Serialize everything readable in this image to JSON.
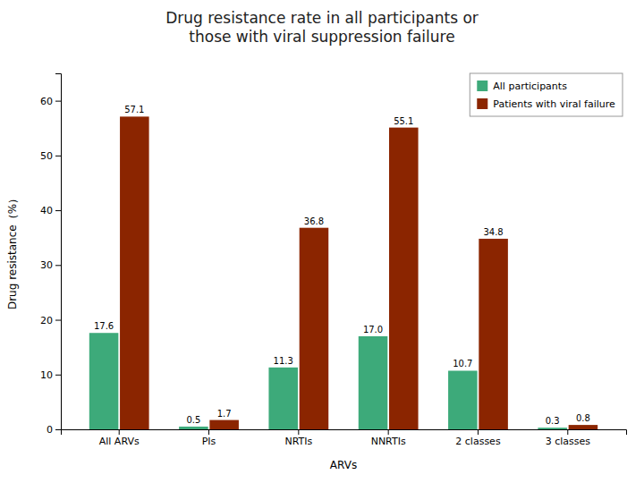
{
  "chart_data": {
    "type": "bar",
    "title": "Drug resistance rate in all participants or\nthose with viral suppression failure",
    "x_label": "ARVs",
    "y_label": "Drug resistance（%）",
    "categories": [
      "All ARVs",
      "PIs",
      "NRTIs",
      "NNRTIs",
      "2 classes",
      "3 classes"
    ],
    "series": [
      {
        "name": "All participants",
        "color": "#3DAA7A",
        "values": [
          17.6,
          0.5,
          11.3,
          17.0,
          10.7,
          0.3
        ],
        "value_labels": [
          "17.6",
          "0.5",
          "11.3",
          "17.0",
          "10.7",
          "0.3"
        ]
      },
      {
        "name": "Patients with viral failure",
        "color": "#8B2500",
        "values": [
          57.1,
          1.7,
          36.8,
          55.1,
          34.8,
          0.8
        ]
      }
    ],
    "ylim": [
      0,
      65
    ],
    "yticks": [
      0,
      10,
      20,
      30,
      40,
      50,
      60
    ],
    "legend": "upper right",
    "data_labels": true,
    "grid": false
  }
}
